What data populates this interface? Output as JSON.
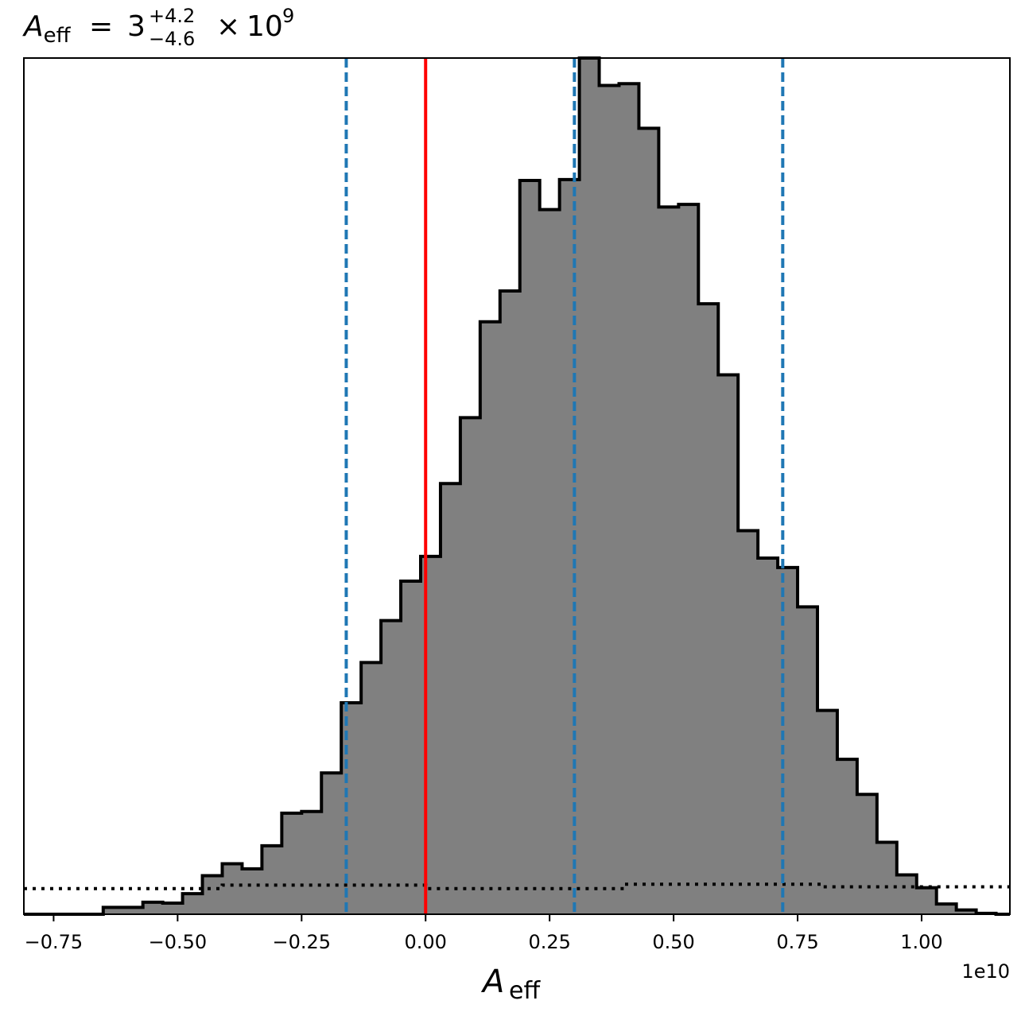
{
  "chart_data": {
    "type": "histogram",
    "title": {
      "symbol": "A",
      "symbol_sub": "eff",
      "equals": "=",
      "value": "3",
      "upper_err": "+4.2",
      "lower_err": "−4.6",
      "times": "×",
      "base": "10",
      "exponent": "9"
    },
    "xlabel": {
      "symbol": "A",
      "sub": "eff"
    },
    "x_offset_label": "1e10",
    "xlim": [
      -0.81,
      1.178
    ],
    "ylim": [
      0,
      1.0
    ],
    "y_ticks_shown": false,
    "grid": false,
    "bin_edges": [
      -0.81,
      -0.77,
      -0.73,
      -0.69,
      -0.65,
      -0.61,
      -0.57,
      -0.53,
      -0.49,
      -0.45,
      -0.41,
      -0.37,
      -0.33,
      -0.29,
      -0.25,
      -0.21,
      -0.17,
      -0.13,
      -0.09,
      -0.05,
      -0.01,
      0.03,
      0.07,
      0.11,
      0.15,
      0.19,
      0.23,
      0.27,
      0.31,
      0.35,
      0.39,
      0.43,
      0.47,
      0.51,
      0.55,
      0.59,
      0.63,
      0.67,
      0.71,
      0.75,
      0.79,
      0.83,
      0.87,
      0.91,
      0.95,
      0.99,
      1.03,
      1.07,
      1.11,
      1.15,
      1.178
    ],
    "counts": [
      0.0,
      0.0,
      0.0,
      0.0,
      0.008,
      0.008,
      0.014,
      0.013,
      0.024,
      0.045,
      0.059,
      0.053,
      0.08,
      0.118,
      0.12,
      0.165,
      0.247,
      0.294,
      0.343,
      0.389,
      0.418,
      0.503,
      0.58,
      0.692,
      0.728,
      0.857,
      0.823,
      0.858,
      1.0,
      0.968,
      0.97,
      0.918,
      0.826,
      0.829,
      0.713,
      0.63,
      0.448,
      0.416,
      0.405,
      0.359,
      0.238,
      0.181,
      0.14,
      0.084,
      0.046,
      0.031,
      0.012,
      0.005,
      0.001,
      0.0
    ],
    "histogram_style": {
      "fill": "#808080",
      "edge": "#000000"
    },
    "prior_dotted": {
      "x": [
        -0.81,
        -0.41,
        -0.41,
        0.0,
        0.0,
        0.4,
        0.4,
        0.8,
        0.8,
        1.178
      ],
      "y": [
        0.03,
        0.03,
        0.034,
        0.034,
        0.03,
        0.03,
        0.035,
        0.035,
        0.032,
        0.032
      ],
      "color": "#000000"
    },
    "vlines": [
      {
        "x": 0.0,
        "style": "solid",
        "color": "#ff0000"
      },
      {
        "x": -0.16,
        "style": "dashed",
        "color": "#1f77b4"
      },
      {
        "x": 0.3,
        "style": "dashed",
        "color": "#1f77b4"
      },
      {
        "x": 0.72,
        "style": "dashed",
        "color": "#1f77b4"
      }
    ],
    "x_ticks": [
      {
        "value": -0.75,
        "label": "−0.75"
      },
      {
        "value": -0.5,
        "label": "−0.50"
      },
      {
        "value": -0.25,
        "label": "−0.25"
      },
      {
        "value": 0.0,
        "label": "0.00"
      },
      {
        "value": 0.25,
        "label": "0.25"
      },
      {
        "value": 0.5,
        "label": "0.50"
      },
      {
        "value": 0.75,
        "label": "0.75"
      },
      {
        "value": 1.0,
        "label": "1.00"
      }
    ]
  }
}
